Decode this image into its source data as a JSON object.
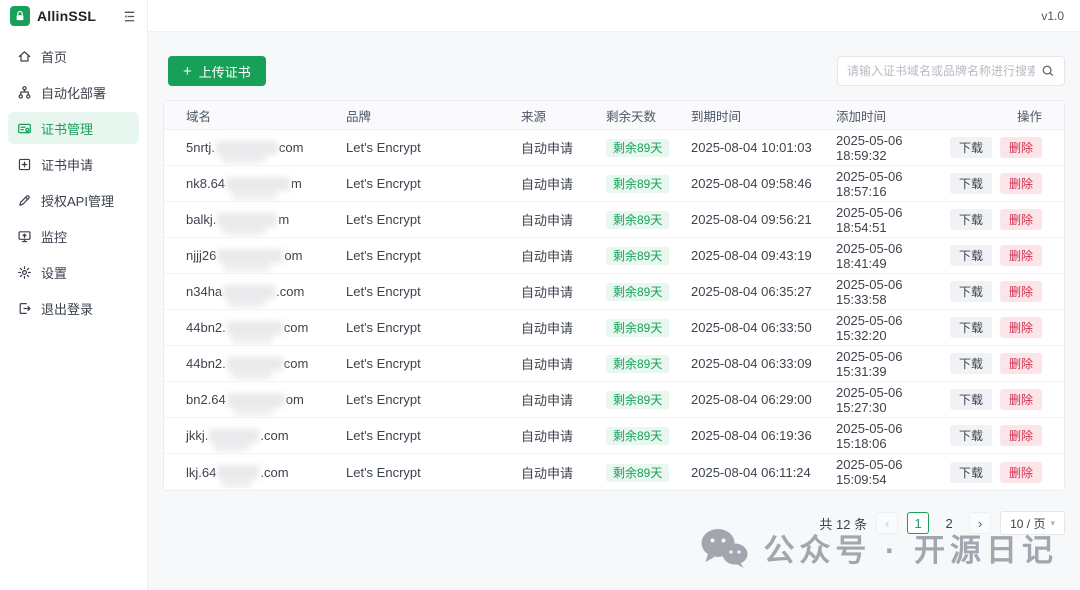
{
  "app": {
    "name": "AllinSSL",
    "version": "v1.0"
  },
  "theme": {
    "primary": "#18a058",
    "primary_light_bg": "#e7f6ee",
    "danger": "#d03050",
    "danger_light_bg": "#fbe5e9"
  },
  "sidebar": {
    "items": [
      {
        "label": "首页",
        "icon": "home-icon",
        "active": false
      },
      {
        "label": "自动化部署",
        "icon": "deploy-icon",
        "active": false
      },
      {
        "label": "证书管理",
        "icon": "certificate-icon",
        "active": true
      },
      {
        "label": "证书申请",
        "icon": "cert-apply-icon",
        "active": false
      },
      {
        "label": "授权API管理",
        "icon": "api-key-icon",
        "active": false
      },
      {
        "label": "监控",
        "icon": "monitor-icon",
        "active": false
      },
      {
        "label": "设置",
        "icon": "gear-icon",
        "active": false
      },
      {
        "label": "退出登录",
        "icon": "logout-icon",
        "active": false
      }
    ]
  },
  "toolbar": {
    "upload_label": "上传证书",
    "search_placeholder": "请输入证书域名或品牌名称进行搜索"
  },
  "table": {
    "columns": [
      "域名",
      "品牌",
      "来源",
      "剩余天数",
      "到期时间",
      "添加时间",
      "操作"
    ],
    "rows": [
      {
        "domain_prefix": "5nrtj.",
        "domain_suffix": "com",
        "blur_width": 62,
        "brand": "Let's Encrypt",
        "source": "自动申请",
        "days_badge": "剩余89天",
        "expires": "2025-08-04 10:01:03",
        "added": "2025-05-06 18:59:32"
      },
      {
        "domain_prefix": "nk8.64",
        "domain_suffix": "m",
        "blur_width": 64,
        "brand": "Let's Encrypt",
        "source": "自动申请",
        "days_badge": "剩余89天",
        "expires": "2025-08-04 09:58:46",
        "added": "2025-05-06 18:57:16"
      },
      {
        "domain_prefix": "balkj.",
        "domain_suffix": "m",
        "blur_width": 60,
        "brand": "Let's Encrypt",
        "source": "自动申请",
        "days_badge": "剩余89天",
        "expires": "2025-08-04 09:56:21",
        "added": "2025-05-06 18:54:51"
      },
      {
        "domain_prefix": "njjj26",
        "domain_suffix": "om",
        "blur_width": 66,
        "brand": "Let's Encrypt",
        "source": "自动申请",
        "days_badge": "剩余89天",
        "expires": "2025-08-04 09:43:19",
        "added": "2025-05-06 18:41:49"
      },
      {
        "domain_prefix": "n34ha",
        "domain_suffix": ".com",
        "blur_width": 52,
        "brand": "Let's Encrypt",
        "source": "自动申请",
        "days_badge": "剩余89天",
        "expires": "2025-08-04 06:35:27",
        "added": "2025-05-06 15:33:58"
      },
      {
        "domain_prefix": "44bn2.",
        "domain_suffix": "com",
        "blur_width": 56,
        "brand": "Let's Encrypt",
        "source": "自动申请",
        "days_badge": "剩余89天",
        "expires": "2025-08-04 06:33:50",
        "added": "2025-05-06 15:32:20"
      },
      {
        "domain_prefix": "44bn2.",
        "domain_suffix": "com",
        "blur_width": 56,
        "brand": "Let's Encrypt",
        "source": "自动申请",
        "days_badge": "剩余89天",
        "expires": "2025-08-04 06:33:09",
        "added": "2025-05-06 15:31:39"
      },
      {
        "domain_prefix": "bn2.64",
        "domain_suffix": "om",
        "blur_width": 58,
        "brand": "Let's Encrypt",
        "source": "自动申请",
        "days_badge": "剩余89天",
        "expires": "2025-08-04 06:29:00",
        "added": "2025-05-06 15:27:30"
      },
      {
        "domain_prefix": "jkkj.",
        "domain_suffix": ".com",
        "blur_width": 50,
        "brand": "Let's Encrypt",
        "source": "自动申请",
        "days_badge": "剩余89天",
        "expires": "2025-08-04 06:19:36",
        "added": "2025-05-06 15:18:06"
      },
      {
        "domain_prefix": "lkj.64",
        "domain_suffix": ".com",
        "blur_width": 42,
        "brand": "Let's Encrypt",
        "source": "自动申请",
        "days_badge": "剩余89天",
        "expires": "2025-08-04 06:11:24",
        "added": "2025-05-06 15:09:54"
      }
    ],
    "row_actions": {
      "download": "下载",
      "delete": "删除"
    }
  },
  "pagination": {
    "total_label": "共 12 条",
    "pages": [
      {
        "label": "1",
        "active": true
      },
      {
        "label": "2",
        "active": false
      }
    ],
    "page_size_label": "10 / 页"
  },
  "watermark": {
    "text": "公众号 · 开源日记"
  }
}
